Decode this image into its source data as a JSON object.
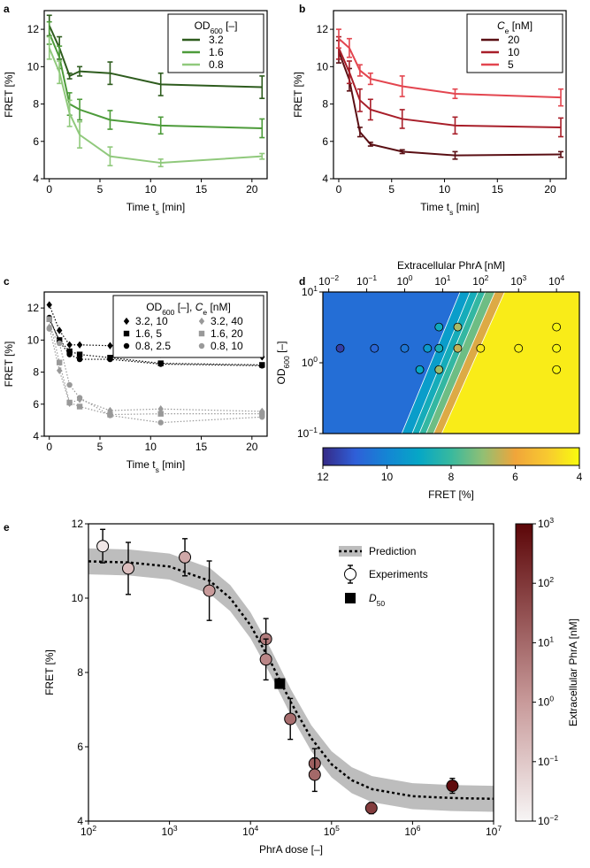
{
  "chart_data": [
    {
      "panel": "a",
      "type": "line",
      "y_label": "FRET [%]",
      "x_label": [
        {
          "text": "Time t"
        },
        {
          "text": "s",
          "style": "sub"
        },
        {
          "text": " [min]"
        }
      ],
      "x": [
        0,
        1,
        2,
        3,
        6,
        11,
        21
      ],
      "xlim": [
        -0.5,
        21.5
      ],
      "xticks": [
        0,
        5,
        10,
        15,
        20
      ],
      "ylim": [
        4,
        13
      ],
      "yticks": [
        4,
        6,
        8,
        10,
        12
      ],
      "legend": "upper right",
      "legend_title": [
        {
          "text": "OD"
        },
        {
          "text": "600",
          "style": "sub"
        },
        {
          "text": " [–]"
        }
      ],
      "series": [
        {
          "name": "3.2",
          "color": "#2e5c1e",
          "values": [
            12.2,
            11.0,
            9.5,
            9.75,
            9.65,
            9.05,
            8.9
          ],
          "errors": [
            0.55,
            0.6,
            0.15,
            0.25,
            0.6,
            0.6,
            0.6
          ]
        },
        {
          "name": "1.6",
          "color": "#4d9b3a",
          "values": [
            11.8,
            10.5,
            8.0,
            7.7,
            7.15,
            6.85,
            6.7
          ],
          "errors": [
            0.6,
            0.6,
            0.6,
            0.55,
            0.5,
            0.45,
            0.5
          ]
        },
        {
          "name": "0.8",
          "color": "#90c97c",
          "values": [
            11.0,
            9.7,
            7.5,
            6.35,
            5.2,
            4.85,
            5.2
          ],
          "errors": [
            0.6,
            0.6,
            0.7,
            0.7,
            0.5,
            0.2,
            0.15
          ]
        }
      ]
    },
    {
      "panel": "b",
      "type": "line",
      "y_label": "FRET [%]",
      "x_label": [
        {
          "text": "Time t"
        },
        {
          "text": "s",
          "style": "sub"
        },
        {
          "text": " [min]"
        }
      ],
      "x": [
        0,
        1,
        2,
        3,
        6,
        11,
        21
      ],
      "xlim": [
        -0.5,
        21.5
      ],
      "xticks": [
        0,
        5,
        10,
        15,
        20
      ],
      "ylim": [
        4,
        13
      ],
      "yticks": [
        4,
        6,
        8,
        10,
        12
      ],
      "legend": "upper right",
      "legend_title": [
        {
          "text": "C",
          "style": "italic"
        },
        {
          "text": "e",
          "style": "sub"
        },
        {
          "text": " [nM]"
        }
      ],
      "series": [
        {
          "name": "20",
          "color": "#5a0f14",
          "values": [
            10.8,
            9.3,
            6.5,
            5.85,
            5.45,
            5.25,
            5.3
          ],
          "errors": [
            0.6,
            0.6,
            0.25,
            0.1,
            0.1,
            0.2,
            0.15
          ]
        },
        {
          "name": "10",
          "color": "#a81e29",
          "values": [
            11.0,
            9.7,
            8.2,
            7.7,
            7.2,
            6.85,
            6.75
          ],
          "errors": [
            0.6,
            0.6,
            0.6,
            0.55,
            0.5,
            0.45,
            0.5
          ]
        },
        {
          "name": "5",
          "color": "#e3454f",
          "values": [
            11.5,
            11.0,
            9.8,
            9.35,
            8.95,
            8.55,
            8.35
          ],
          "errors": [
            0.5,
            0.5,
            0.3,
            0.3,
            0.55,
            0.25,
            0.45
          ]
        }
      ]
    },
    {
      "panel": "c",
      "type": "line",
      "y_label": "FRET [%]",
      "line_style": "dotted",
      "legend_columns": 2,
      "x_label": [
        {
          "text": "Time t"
        },
        {
          "text": "s",
          "style": "sub"
        },
        {
          "text": " [min]"
        }
      ],
      "x": [
        0,
        1,
        2,
        3,
        6,
        11,
        21
      ],
      "xlim": [
        -0.5,
        21.5
      ],
      "xticks": [
        0,
        5,
        10,
        15,
        20
      ],
      "ylim": [
        4,
        13
      ],
      "yticks": [
        4,
        6,
        8,
        10,
        12
      ],
      "legend": "upper right",
      "legend_title": [
        {
          "text": "OD"
        },
        {
          "text": "600",
          "style": "sub"
        },
        {
          "text": " [–], "
        },
        {
          "text": "C",
          "style": "italic"
        },
        {
          "text": "e",
          "style": "sub"
        },
        {
          "text": " [nM]"
        }
      ],
      "series": [
        {
          "name": "3.2, 10",
          "color": "#000000",
          "marker": "diamond",
          "values": [
            12.2,
            10.6,
            9.7,
            9.7,
            9.65,
            9.1,
            8.95
          ]
        },
        {
          "name": "1.6, 5",
          "color": "#000000",
          "marker": "square",
          "values": [
            11.3,
            10.0,
            9.3,
            9.1,
            8.9,
            8.55,
            8.45
          ]
        },
        {
          "name": "0.8, 2.5",
          "color": "#000000",
          "marker": "circle",
          "values": [
            11.4,
            9.9,
            9.1,
            8.8,
            8.8,
            8.5,
            8.4
          ]
        },
        {
          "name": "3.2, 40",
          "color": "#999999",
          "marker": "diamond",
          "values": [
            10.8,
            8.1,
            6.05,
            6.3,
            5.6,
            5.7,
            5.55
          ]
        },
        {
          "name": "1.6, 20",
          "color": "#999999",
          "marker": "square",
          "values": [
            11.3,
            8.6,
            6.1,
            5.85,
            5.35,
            5.4,
            5.4
          ]
        },
        {
          "name": "0.8, 10",
          "color": "#999999",
          "marker": "circle",
          "values": [
            10.7,
            9.8,
            7.2,
            6.4,
            5.3,
            4.85,
            5.2
          ]
        }
      ]
    },
    {
      "panel": "d",
      "type": "contour",
      "x_label": "Extracellular PhrA [nM]",
      "y_label": [
        {
          "text": "OD"
        },
        {
          "text": "600",
          "style": "sub"
        },
        {
          "text": " [–]"
        }
      ],
      "log_x": true,
      "log_y": true,
      "xlim": [
        0.007,
        40000
      ],
      "ylim": [
        0.1,
        10
      ],
      "xticks": [
        {
          "value": 0.01,
          "label": [
            {
              "text": "10"
            },
            {
              "text": "−2",
              "style": "sup"
            }
          ]
        },
        {
          "value": 0.1,
          "label": [
            {
              "text": "10"
            },
            {
              "text": "−1",
              "style": "sup"
            }
          ]
        },
        {
          "value": 1,
          "label": [
            {
              "text": "10"
            },
            {
              "text": "0",
              "style": "sup"
            }
          ]
        },
        {
          "value": 10,
          "label": [
            {
              "text": "10"
            },
            {
              "text": "1",
              "style": "sup"
            }
          ]
        },
        {
          "value": 100,
          "label": [
            {
              "text": "10"
            },
            {
              "text": "2",
              "style": "sup"
            }
          ]
        },
        {
          "value": 1000,
          "label": [
            {
              "text": "10"
            },
            {
              "text": "3",
              "style": "sup"
            }
          ]
        },
        {
          "value": 10000,
          "label": [
            {
              "text": "10"
            },
            {
              "text": "4",
              "style": "sup"
            }
          ]
        }
      ],
      "yticks": [
        {
          "value": 0.1,
          "label": [
            {
              "text": "10"
            },
            {
              "text": "−1",
              "style": "sup"
            }
          ]
        },
        {
          "value": 1,
          "label": [
            {
              "text": "10"
            },
            {
              "text": "0",
              "style": "sup"
            }
          ]
        },
        {
          "value": 10,
          "label": [
            {
              "text": "10"
            },
            {
              "text": "1",
              "style": "sup"
            }
          ]
        }
      ],
      "boundaries": [
        [
          0.8,
          30
        ],
        [
          1.5,
          55
        ],
        [
          2.3,
          90
        ],
        [
          3.5,
          140
        ],
        [
          5.5,
          250
        ],
        [
          9,
          450
        ]
      ],
      "band_fret": [
        10.6,
        9.3,
        8.7,
        8.1,
        7.4,
        6.2,
        4.3
      ],
      "points": {
        "x": [
          8,
          25,
          10000,
          0.02,
          0.16,
          1,
          4,
          8,
          25,
          100,
          1000,
          10000,
          2.5,
          8,
          10000
        ],
        "y": [
          3.2,
          3.2,
          3.2,
          1.6,
          1.6,
          1.6,
          1.6,
          1.6,
          1.6,
          1.6,
          1.6,
          1.6,
          0.8,
          0.8,
          0.8
        ],
        "fret": [
          8.8,
          6.8,
          4.1,
          11.6,
          10.8,
          10.4,
          9.4,
          8.6,
          6.5,
          4.4,
          4.2,
          4.1,
          9.0,
          6.9,
          4.1
        ]
      },
      "colorbar": {
        "label": "FRET [%]",
        "clim": [
          12,
          4
        ],
        "ticks": [
          12,
          10,
          8,
          6,
          4
        ],
        "colormap": [
          {
            "value": 12,
            "color": "#352a87"
          },
          {
            "value": 11,
            "color": "#2f5fd8"
          },
          {
            "value": 10,
            "color": "#1485d4"
          },
          {
            "value": 9,
            "color": "#06a7c6"
          },
          {
            "value": 8,
            "color": "#38b99e"
          },
          {
            "value": 7,
            "color": "#92bf73"
          },
          {
            "value": 6,
            "color": "#f0a53a"
          },
          {
            "value": 5,
            "color": "#f8c930"
          },
          {
            "value": 4,
            "color": "#f9fb0e"
          }
        ]
      }
    },
    {
      "panel": "e",
      "type": "scatter",
      "x_label": "PhrA dose [–]",
      "y_label": "FRET [%]",
      "log_x": true,
      "xlim": [
        100,
        10000000
      ],
      "ylim": [
        4,
        12
      ],
      "yticks": [
        4,
        6,
        8,
        10,
        12
      ],
      "legend": "upper right",
      "xticks": [
        {
          "value": 100,
          "label": [
            {
              "text": "10"
            },
            {
              "text": "2",
              "style": "sup"
            }
          ]
        },
        {
          "value": 1000,
          "label": [
            {
              "text": "10"
            },
            {
              "text": "3",
              "style": "sup"
            }
          ]
        },
        {
          "value": 10000,
          "label": [
            {
              "text": "10"
            },
            {
              "text": "4",
              "style": "sup"
            }
          ]
        },
        {
          "value": 100000,
          "label": [
            {
              "text": "10"
            },
            {
              "text": "5",
              "style": "sup"
            }
          ]
        },
        {
          "value": 1000000,
          "label": [
            {
              "text": "10"
            },
            {
              "text": "6",
              "style": "sup"
            }
          ]
        },
        {
          "value": 10000000,
          "label": [
            {
              "text": "10"
            },
            {
              "text": "7",
              "style": "sup"
            }
          ]
        }
      ],
      "prediction": {
        "name": "Prediction",
        "color": "#000000",
        "band_color": "#bdbdbd",
        "x": [
          100,
          316,
          1000,
          3162,
          5623,
          10000,
          17783,
          31623,
          56234,
          100000,
          177828,
          316228,
          1000000,
          3162278,
          10000000
        ],
        "y": [
          10.99,
          10.96,
          10.85,
          10.46,
          10.0,
          9.27,
          8.28,
          7.19,
          6.23,
          5.53,
          5.1,
          4.86,
          4.67,
          4.62,
          4.6
        ],
        "lower": [
          10.64,
          10.61,
          10.5,
          10.11,
          9.65,
          8.92,
          7.93,
          6.84,
          5.88,
          5.18,
          4.75,
          4.51,
          4.32,
          4.27,
          4.25
        ],
        "upper": [
          11.34,
          11.31,
          11.2,
          10.81,
          10.35,
          9.62,
          8.63,
          7.54,
          6.58,
          5.88,
          5.45,
          5.21,
          5.02,
          4.97,
          4.95
        ]
      },
      "experiments": {
        "name": "Experiments",
        "x": [
          150,
          310,
          1550,
          3100,
          15500,
          15500,
          31000,
          62000,
          62000,
          310000,
          3100000
        ],
        "y": [
          11.4,
          10.8,
          11.1,
          10.2,
          8.9,
          8.35,
          6.75,
          5.55,
          5.25,
          4.35,
          4.95
        ],
        "errors": [
          0.45,
          0.7,
          0.5,
          0.8,
          0.55,
          0.55,
          0.55,
          0.4,
          0.45,
          0.15,
          0.2
        ],
        "phra": [
          0.02,
          0.16,
          0.5,
          1,
          4,
          2.5,
          8,
          16,
          10,
          80,
          800
        ]
      },
      "d50": {
        "name": [
          {
            "text": "D",
            "style": "italic"
          },
          {
            "text": "50",
            "style": "sub"
          }
        ],
        "color": "#000000",
        "x": 23000,
        "y": 7.7
      },
      "colorbar": {
        "label": "Extracellular PhrA [nM]",
        "log": true,
        "clim": [
          0.01,
          1000
        ],
        "ticks": [
          {
            "value": 0.01,
            "label": [
              {
                "text": "10"
              },
              {
                "text": "−2",
                "style": "sup"
              }
            ]
          },
          {
            "value": 0.1,
            "label": [
              {
                "text": "10"
              },
              {
                "text": "−1",
                "style": "sup"
              }
            ]
          },
          {
            "value": 1,
            "label": [
              {
                "text": "10"
              },
              {
                "text": "0",
                "style": "sup"
              }
            ]
          },
          {
            "value": 10,
            "label": [
              {
                "text": "10"
              },
              {
                "text": "1",
                "style": "sup"
              }
            ]
          },
          {
            "value": 100,
            "label": [
              {
                "text": "10"
              },
              {
                "text": "2",
                "style": "sup"
              }
            ]
          },
          {
            "value": 1000,
            "label": [
              {
                "text": "10"
              },
              {
                "text": "3",
                "style": "sup"
              }
            ]
          }
        ],
        "colormap": [
          {
            "value": 0.01,
            "color": "#f7f5f5"
          },
          {
            "value": 1,
            "color": "#c89a9a"
          },
          {
            "value": 1000,
            "color": "#5c0608"
          }
        ]
      }
    }
  ]
}
